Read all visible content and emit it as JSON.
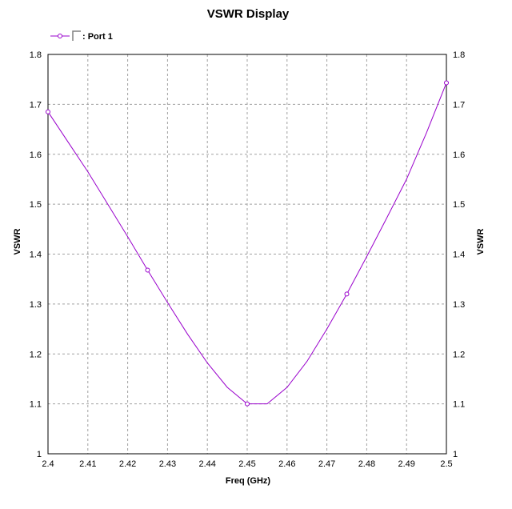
{
  "chart_data": {
    "type": "line",
    "title": "VSWR Display",
    "xlabel": "Freq (GHz)",
    "ylabel": "VSWR",
    "ylabel_right": "VSWR",
    "xlim": [
      2.4,
      2.5
    ],
    "ylim": [
      1.0,
      1.8
    ],
    "x_ticks": [
      "2.4",
      "2.41",
      "2.42",
      "2.43",
      "2.44",
      "2.45",
      "2.46",
      "2.47",
      "2.48",
      "2.49",
      "2.5"
    ],
    "y_ticks": [
      "1",
      "1.1",
      "1.2",
      "1.3",
      "1.4",
      "1.5",
      "1.6",
      "1.7",
      "1.8"
    ],
    "grid": true,
    "legend": {
      "placement": "top-left",
      "symbol": "Γ",
      "label": ": Port 1"
    },
    "series": [
      {
        "name": "Port 1",
        "color": "#9900cc",
        "x": [
          2.4,
          2.405,
          2.41,
          2.415,
          2.42,
          2.425,
          2.43,
          2.435,
          2.44,
          2.445,
          2.45,
          2.455,
          2.46,
          2.465,
          2.47,
          2.475,
          2.48,
          2.485,
          2.49,
          2.495,
          2.5
        ],
        "y": [
          1.685,
          1.625,
          1.565,
          1.5,
          1.435,
          1.368,
          1.303,
          1.24,
          1.182,
          1.133,
          1.1,
          1.1,
          1.133,
          1.185,
          1.25,
          1.32,
          1.395,
          1.472,
          1.55,
          1.643,
          1.743
        ],
        "marker_x": [
          2.4,
          2.425,
          2.45,
          2.475,
          2.5
        ],
        "marker_y": [
          1.685,
          1.368,
          1.1,
          1.32,
          1.743
        ]
      }
    ]
  }
}
